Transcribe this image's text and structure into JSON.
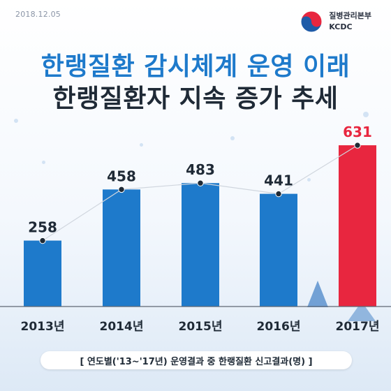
{
  "header": {
    "date": "2018.12.05",
    "org_name_ko": "질병관리본부",
    "org_name_en": "KCDC",
    "title_line1": "한랭질환 감시체계 운영 이래",
    "title_line2": "한랭질환자 지속 증가 추세"
  },
  "caption": "[ 연도별('13~'17년) 운영결과 중 한랭질환 신고결과(명) ]",
  "colors": {
    "bar": "#1e7acb",
    "highlight_bar": "#e8263f",
    "line": "#d0d6de",
    "point": "#1f2a36"
  },
  "chart_data": {
    "type": "bar",
    "categories": [
      "2013년",
      "2014년",
      "2015년",
      "2016년",
      "2017년"
    ],
    "values": [
      258,
      458,
      483,
      441,
      631
    ],
    "highlight_index": 4,
    "ylim": [
      0,
      700
    ],
    "grid": false,
    "title": "",
    "xlabel": "",
    "ylabel": ""
  }
}
